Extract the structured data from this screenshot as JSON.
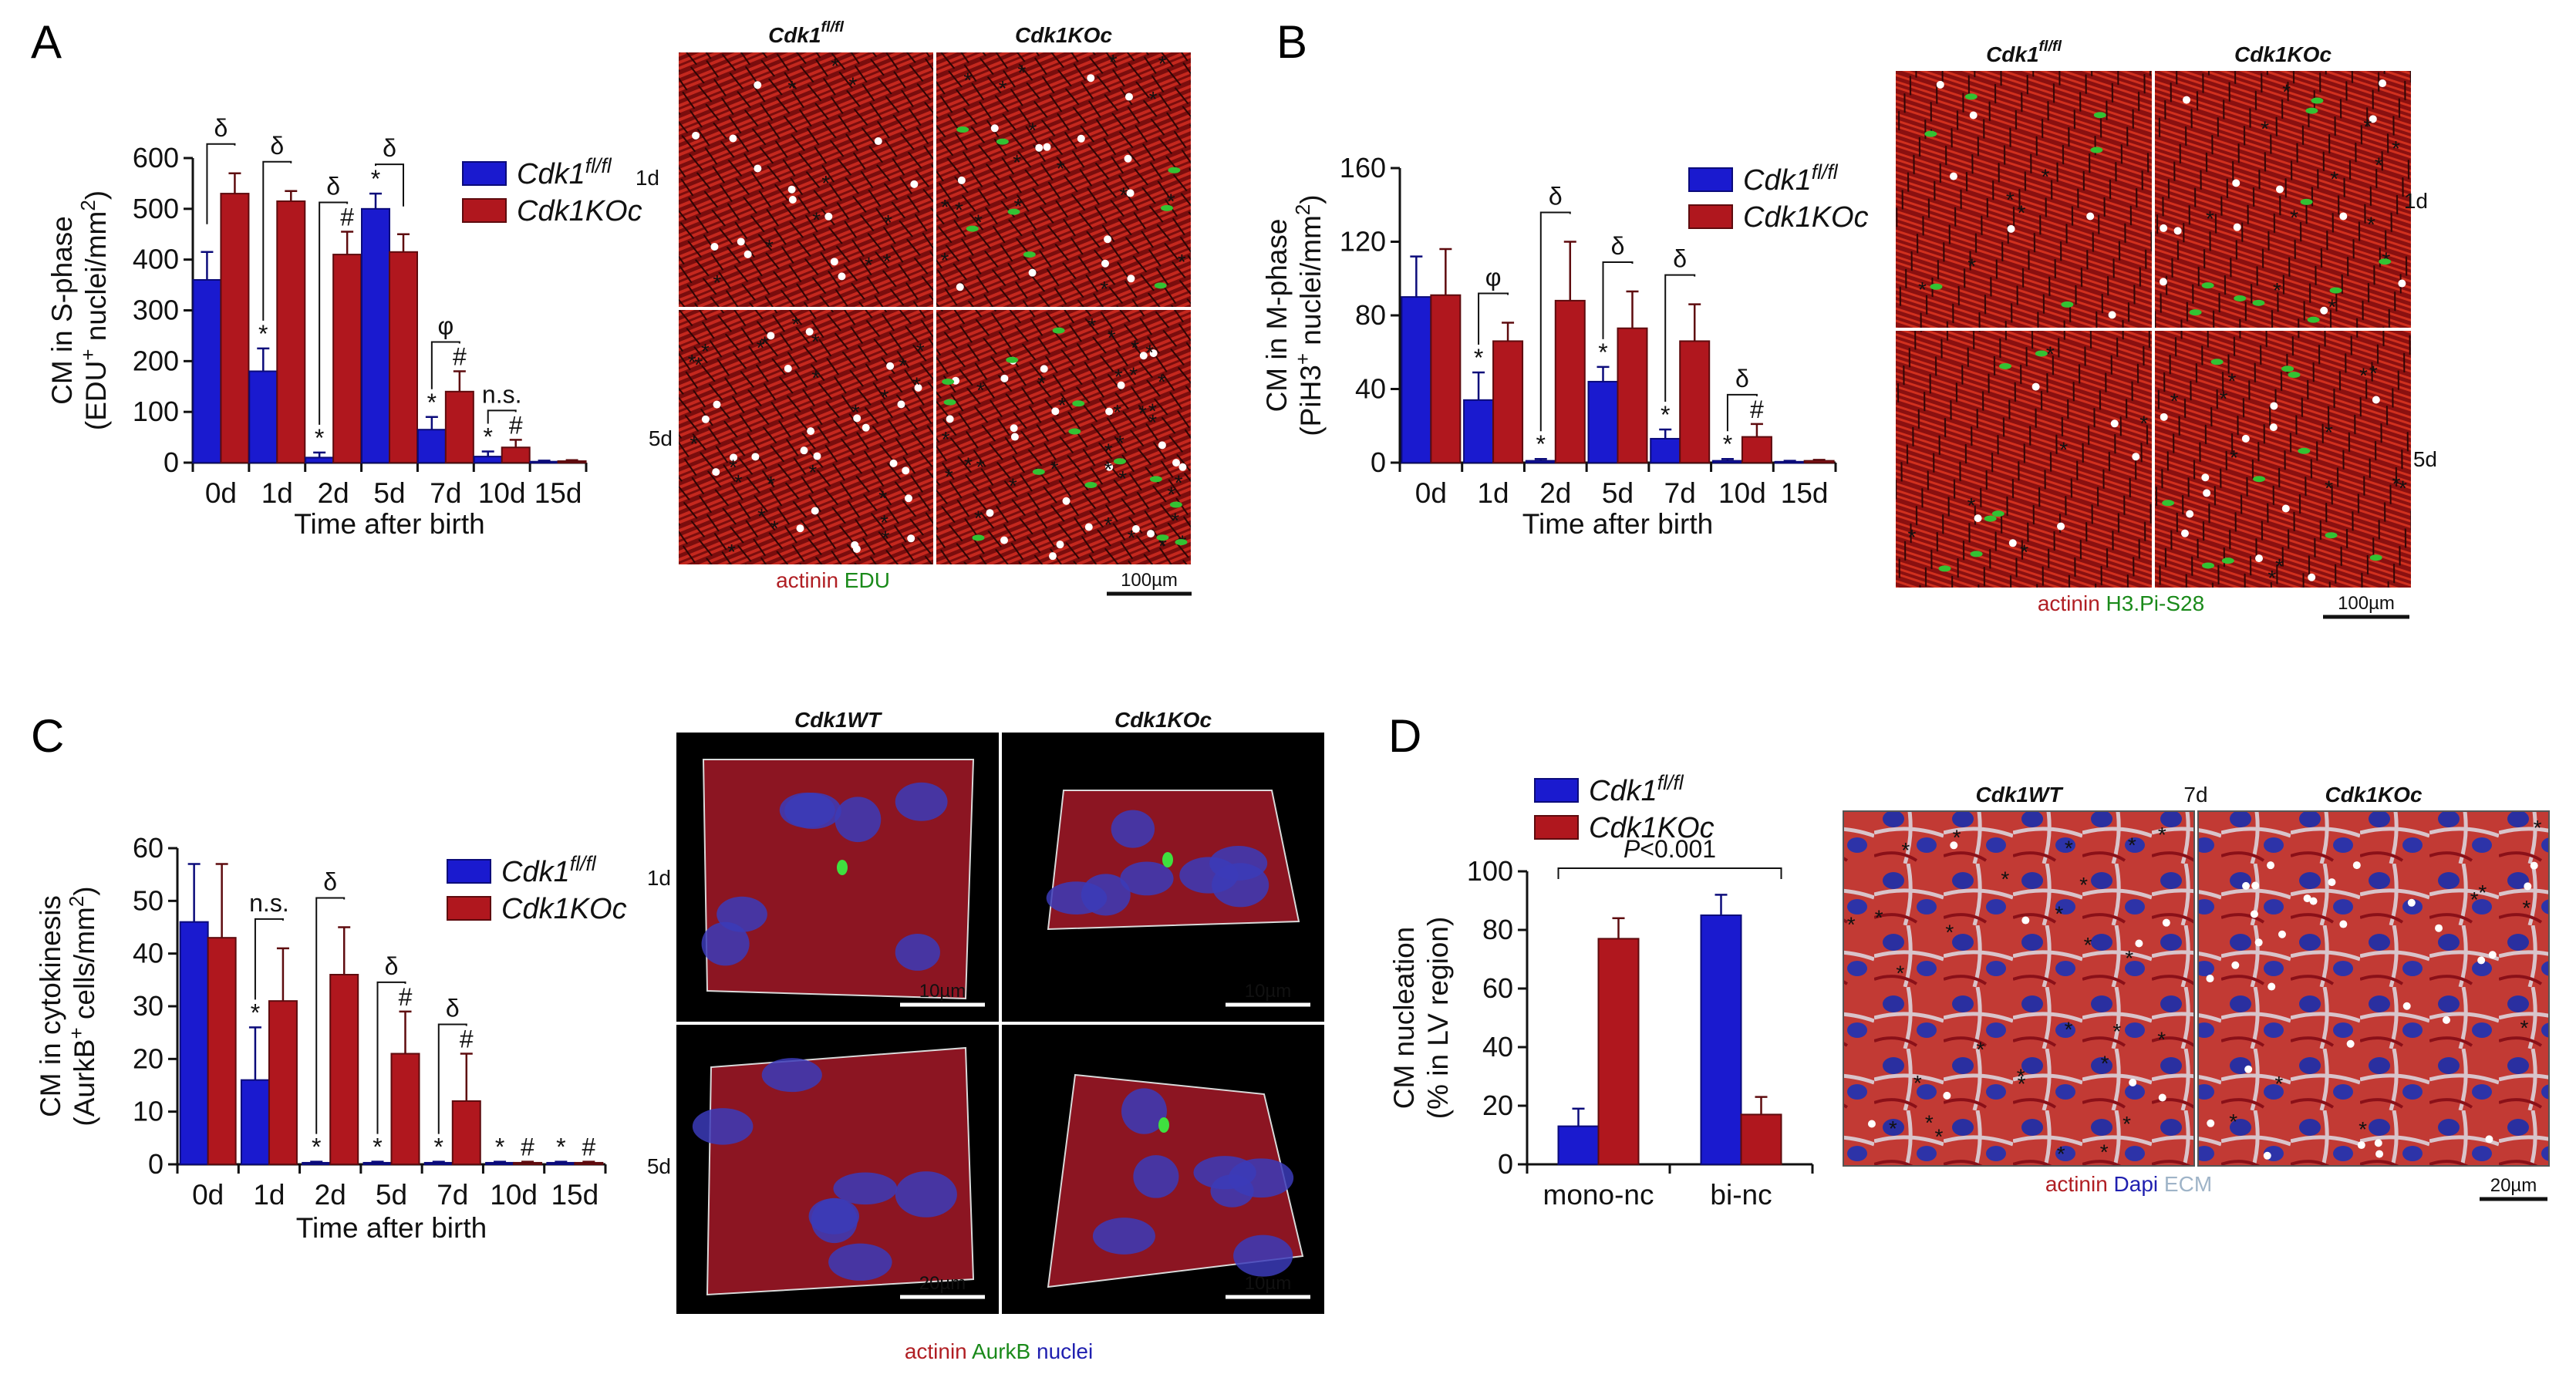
{
  "panels": {
    "A": {
      "letter": "A",
      "image": {
        "columns": [
          "Cdk1",
          "Cdk1KOc"
        ],
        "column_sup": [
          "fl/fl",
          ""
        ],
        "rows": [
          "1d",
          "5d"
        ],
        "stain": [
          {
            "text": "actinin",
            "color": "#b01e23"
          },
          {
            "text": "EDU",
            "color": "#1a8a1a"
          }
        ],
        "scalebar": "100µm"
      }
    },
    "B": {
      "letter": "B",
      "image": {
        "columns": [
          "Cdk1",
          "Cdk1KOc"
        ],
        "column_sup": [
          "fl/fl",
          ""
        ],
        "rows": [
          "1d",
          "5d"
        ],
        "stain": [
          {
            "text": "actinin",
            "color": "#b01e23"
          },
          {
            "text": "H3.Pi-S28",
            "color": "#1a8a1a"
          }
        ],
        "scalebar": "100µm"
      }
    },
    "C": {
      "letter": "C",
      "image": {
        "columns": [
          "Cdk1WT",
          "Cdk1KOc"
        ],
        "column_sup": [
          "",
          ""
        ],
        "rows": [
          "1d",
          "5d"
        ],
        "stain": [
          {
            "text": "actinin",
            "color": "#b01e23"
          },
          {
            "text": "AurkB",
            "color": "#1a8a1a"
          },
          {
            "text": "nuclei",
            "color": "#2020b0"
          }
        ],
        "scalebars": [
          "10µm",
          "10µm",
          "20µm",
          "10µm"
        ]
      }
    },
    "D": {
      "letter": "D",
      "image": {
        "columns": [
          "Cdk1WT",
          "Cdk1KOc"
        ],
        "center_label": "7d",
        "stain": [
          {
            "text": "actinin",
            "color": "#b01e23"
          },
          {
            "text": "Dapi",
            "color": "#2020b0"
          },
          {
            "text": "ECM",
            "color": "#9fb4c8"
          }
        ],
        "scalebar": "20µm"
      }
    }
  },
  "colors": {
    "fl": "#1a1acf",
    "ko": "#b0171e",
    "fl_stroke": "#0b0b7a",
    "ko_stroke": "#5e0b0e"
  },
  "chart_data": [
    {
      "type": "bar",
      "panel": "A",
      "categories": [
        "0d",
        "1d",
        "2d",
        "5d",
        "7d",
        "10d",
        "15d"
      ],
      "xlabel": "Time after birth",
      "ylabel_lines": [
        "CM in S-phase",
        "(EDU",
        "+",
        " nuclei/mm",
        "2",
        ")"
      ],
      "ylim": [
        0,
        600
      ],
      "yticks": [
        0,
        100,
        200,
        300,
        400,
        500,
        600
      ],
      "series": [
        {
          "name": "Cdk1",
          "name_sup": "fl/fl",
          "values": [
            360,
            180,
            10,
            500,
            65,
            12,
            2
          ],
          "errors": [
            55,
            45,
            10,
            30,
            25,
            10,
            2
          ]
        },
        {
          "name": "Cdk1KOc",
          "name_sup": "",
          "values": [
            530,
            515,
            410,
            415,
            140,
            30,
            3
          ],
          "errors": [
            40,
            20,
            45,
            35,
            40,
            15,
            2
          ]
        }
      ],
      "markers_fl": [
        "",
        "*",
        "*",
        "*",
        "*",
        "*",
        ""
      ],
      "markers_ko": [
        "",
        "",
        "#",
        "",
        "#",
        "#",
        ""
      ],
      "brackets": [
        "δ",
        "δ",
        "δ",
        "δ",
        "φ",
        "n.s.",
        ""
      ]
    },
    {
      "type": "bar",
      "panel": "B",
      "categories": [
        "0d",
        "1d",
        "2d",
        "5d",
        "7d",
        "10d",
        "15d"
      ],
      "xlabel": "Time after birth",
      "ylabel_lines": [
        "CM in M-phase",
        "(PiH3",
        "+",
        " nuclei/mm",
        "2",
        ")"
      ],
      "ylim": [
        0,
        160
      ],
      "yticks": [
        0,
        40,
        80,
        120,
        160
      ],
      "series": [
        {
          "name": "Cdk1",
          "name_sup": "fl/fl",
          "values": [
            90,
            34,
            1,
            44,
            13,
            1,
            0.5
          ],
          "errors": [
            22,
            15,
            1,
            8,
            5,
            1,
            0.5
          ]
        },
        {
          "name": "Cdk1KOc",
          "name_sup": "",
          "values": [
            91,
            66,
            88,
            73,
            66,
            14,
            1
          ],
          "errors": [
            25,
            10,
            32,
            20,
            20,
            7,
            0.5
          ]
        }
      ],
      "markers_fl": [
        "",
        "*",
        "*",
        "*",
        "*",
        "*",
        ""
      ],
      "markers_ko": [
        "",
        "",
        "",
        "",
        "",
        "#",
        ""
      ],
      "brackets": [
        "",
        "φ",
        "δ",
        "δ",
        "δ",
        "δ",
        ""
      ]
    },
    {
      "type": "bar",
      "panel": "C",
      "categories": [
        "0d",
        "1d",
        "2d",
        "5d",
        "7d",
        "10d",
        "15d"
      ],
      "xlabel": "Time after birth",
      "ylabel_lines": [
        "CM in cytokinesis",
        "(AurkB",
        "+",
        " cells/mm",
        "2",
        ")"
      ],
      "ylim": [
        0,
        60
      ],
      "yticks": [
        0,
        10,
        20,
        30,
        40,
        50,
        60
      ],
      "series": [
        {
          "name": "Cdk1",
          "name_sup": "fl/fl",
          "values": [
            46,
            16,
            0.3,
            0.3,
            0.3,
            0.3,
            0.3
          ],
          "errors": [
            11,
            10,
            0.2,
            0.2,
            0.2,
            0.2,
            0.2
          ]
        },
        {
          "name": "Cdk1KOc",
          "name_sup": "",
          "values": [
            43,
            31,
            36,
            21,
            12,
            0.3,
            0.3
          ],
          "errors": [
            14,
            10,
            9,
            8,
            9,
            0.2,
            0.2
          ]
        }
      ],
      "markers_fl": [
        "",
        "*",
        "*",
        "*",
        "*",
        "*",
        "*"
      ],
      "markers_ko": [
        "",
        "",
        "",
        "#",
        "#",
        "#",
        "#"
      ],
      "brackets": [
        "",
        "n.s.",
        "δ",
        "δ",
        "δ",
        "",
        ""
      ]
    },
    {
      "type": "bar",
      "panel": "D",
      "categories": [
        "mono-nc",
        "bi-nc"
      ],
      "xlabel": "",
      "ylabel_lines": [
        "CM nucleation",
        "(% in LV region)"
      ],
      "ylim": [
        0,
        100
      ],
      "yticks": [
        0,
        20,
        40,
        60,
        80,
        100
      ],
      "series": [
        {
          "name": "Cdk1",
          "name_sup": "fl/fl",
          "values": [
            13,
            85
          ],
          "errors": [
            6,
            7
          ]
        },
        {
          "name": "Cdk1KOc",
          "name_sup": "",
          "values": [
            77,
            17
          ],
          "errors": [
            7,
            6
          ]
        }
      ],
      "annotation": {
        "italic": "P",
        "text": "<0.001"
      }
    }
  ]
}
